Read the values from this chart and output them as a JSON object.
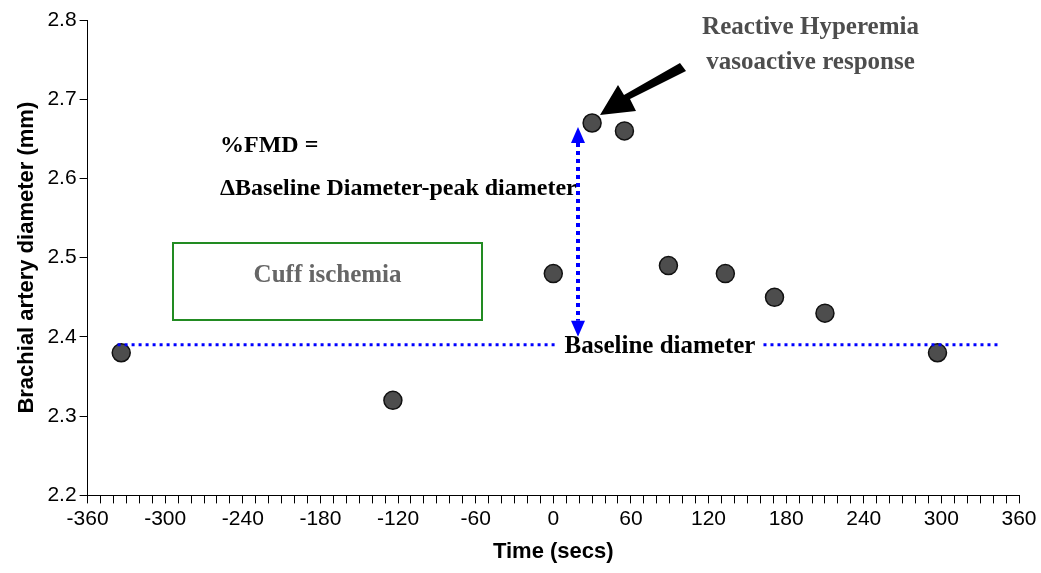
{
  "chart_data": {
    "type": "scatter",
    "xlabel": "Time (secs)",
    "ylabel": "Brachial artery diameter (mm)",
    "x": [
      -334,
      -124,
      0,
      30,
      55,
      89,
      133,
      171,
      210,
      297
    ],
    "values": [
      2.38,
      2.32,
      2.48,
      2.67,
      2.66,
      2.49,
      2.48,
      2.45,
      2.43,
      2.38
    ],
    "color": "#4d4d4d",
    "marker": "circle",
    "xlim": [
      -360,
      360
    ],
    "ylim": [
      2.2,
      2.8
    ],
    "xticks": [
      -360,
      {
        "value": -350,
        "label": null
      },
      {
        "value": -340,
        "label": null
      },
      {
        "value": -330,
        "label": null
      },
      {
        "value": -320,
        "label": null
      },
      {
        "value": -310,
        "label": null
      },
      -300,
      {
        "value": -290,
        "label": null
      },
      {
        "value": -280,
        "label": null
      },
      {
        "value": -270,
        "label": null
      },
      {
        "value": -260,
        "label": null
      },
      {
        "value": -250,
        "label": null
      },
      -240,
      {
        "value": -230,
        "label": null
      },
      {
        "value": -220,
        "label": null
      },
      {
        "value": -210,
        "label": null
      },
      {
        "value": -200,
        "label": null
      },
      {
        "value": -190,
        "label": null
      },
      -180,
      {
        "value": -170,
        "label": null
      },
      {
        "value": -160,
        "label": null
      },
      {
        "value": -150,
        "label": null
      },
      {
        "value": -140,
        "label": null
      },
      {
        "value": -130,
        "label": null
      },
      -120,
      {
        "value": -110,
        "label": null
      },
      {
        "value": -100,
        "label": null
      },
      {
        "value": -90,
        "label": null
      },
      {
        "value": -80,
        "label": null
      },
      {
        "value": -70,
        "label": null
      },
      -60,
      {
        "value": -50,
        "label": null
      },
      {
        "value": -40,
        "label": null
      },
      {
        "value": -30,
        "label": null
      },
      {
        "value": -20,
        "label": null
      },
      {
        "value": -10,
        "label": null
      },
      0,
      {
        "value": 10,
        "label": null
      },
      {
        "value": 20,
        "label": null
      },
      {
        "value": 30,
        "label": null
      },
      {
        "value": 40,
        "label": null
      },
      {
        "value": 50,
        "label": null
      },
      60,
      {
        "value": 70,
        "label": null
      },
      {
        "value": 80,
        "label": null
      },
      {
        "value": 90,
        "label": null
      },
      {
        "value": 100,
        "label": null
      },
      {
        "value": 110,
        "label": null
      },
      120,
      {
        "value": 130,
        "label": null
      },
      {
        "value": 140,
        "label": null
      },
      {
        "value": 150,
        "label": null
      },
      {
        "value": 160,
        "label": null
      },
      {
        "value": 170,
        "label": null
      },
      180,
      {
        "value": 190,
        "label": null
      },
      {
        "value": 200,
        "label": null
      },
      {
        "value": 210,
        "label": null
      },
      {
        "value": 220,
        "label": null
      },
      {
        "value": 230,
        "label": null
      },
      240,
      {
        "value": 250,
        "label": null
      },
      {
        "value": 260,
        "label": null
      },
      {
        "value": 270,
        "label": null
      },
      {
        "value": 280,
        "label": null
      },
      {
        "value": 290,
        "label": null
      },
      300,
      {
        "value": 310,
        "label": null
      },
      {
        "value": 320,
        "label": null
      },
      {
        "value": 330,
        "label": null
      },
      {
        "value": 340,
        "label": null
      },
      {
        "value": 350,
        "label": null
      },
      360
    ],
    "yticks": [
      2.2,
      2.3,
      2.4,
      2.5,
      2.6,
      2.7,
      2.8
    ],
    "ref_lines": [
      {
        "axis": "y",
        "value": 2.39,
        "label": "Baseline diameter",
        "color": "#0000ff",
        "line_style": "dotted"
      }
    ],
    "annotations": [
      "Reactive Hyperemia\nvasoactive response",
      "%FMD =\nΔBaseline Diameter-peak diameter",
      "Cuff ischemia"
    ]
  }
}
